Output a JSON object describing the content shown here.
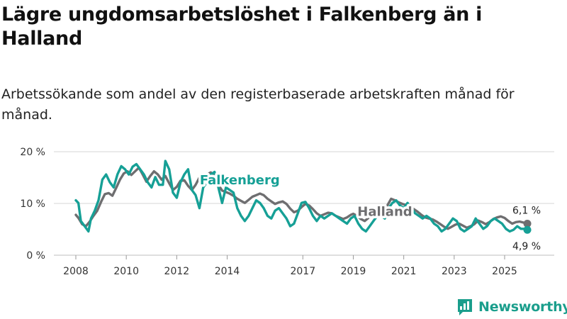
{
  "header": {
    "title": "Lägre ungdomsarbetslöshet i Falkenberg än i Halland",
    "subtitle": "Arbetssökande som andel av den registerbaserade arbetskraften månad för månad."
  },
  "brand": {
    "name": "Newsworthy",
    "icon": "newsworthy-logo-icon",
    "color": "#1a9e8c"
  },
  "colors": {
    "falkenberg": "#16a096",
    "halland": "#6e6e70",
    "grid": "#d6d6d6"
  },
  "chart_data": {
    "type": "line",
    "title": "Lägre ungdomsarbetslöshet i Falkenberg än i Halland",
    "subtitle": "Arbetssökande som andel av den registerbaserade arbetskraften månad för månad.",
    "xlabel": "",
    "ylabel": "",
    "xlim": [
      2007.5,
      2026.25
    ],
    "ylim": [
      0,
      20
    ],
    "grid": true,
    "y_ticks": [
      {
        "value": 0,
        "label": "0 %"
      },
      {
        "value": 10,
        "label": "10 %"
      },
      {
        "value": 20,
        "label": "20 %"
      }
    ],
    "x_ticks": [
      {
        "value": 2008,
        "label": "2008"
      },
      {
        "value": 2010,
        "label": "2010"
      },
      {
        "value": 2012,
        "label": "2012"
      },
      {
        "value": 2014,
        "label": "2014"
      },
      {
        "value": 2017,
        "label": "2017"
      },
      {
        "value": 2019,
        "label": "2019"
      },
      {
        "value": 2021,
        "label": "2021"
      },
      {
        "value": 2023,
        "label": "2023"
      },
      {
        "value": 2025,
        "label": "2025"
      }
    ],
    "series": [
      {
        "name": "Halland",
        "label": "Halland",
        "end_label": "6,1 %",
        "end_value": 6.1,
        "points": [
          [
            2008.0,
            7.8
          ],
          [
            2008.1,
            7.2
          ],
          [
            2008.25,
            6.0
          ],
          [
            2008.4,
            5.6
          ],
          [
            2008.55,
            6.5
          ],
          [
            2008.7,
            7.6
          ],
          [
            2008.85,
            8.6
          ],
          [
            2009.0,
            10.3
          ],
          [
            2009.15,
            11.8
          ],
          [
            2009.3,
            12.0
          ],
          [
            2009.45,
            11.5
          ],
          [
            2009.6,
            13.0
          ],
          [
            2009.75,
            14.6
          ],
          [
            2009.9,
            15.8
          ],
          [
            2010.05,
            16.2
          ],
          [
            2010.2,
            15.5
          ],
          [
            2010.35,
            16.2
          ],
          [
            2010.5,
            16.9
          ],
          [
            2010.65,
            15.6
          ],
          [
            2010.8,
            14.2
          ],
          [
            2010.95,
            15.3
          ],
          [
            2011.1,
            16.2
          ],
          [
            2011.25,
            15.6
          ],
          [
            2011.4,
            14.6
          ],
          [
            2011.55,
            15.3
          ],
          [
            2011.7,
            13.9
          ],
          [
            2011.85,
            12.6
          ],
          [
            2012.0,
            13.2
          ],
          [
            2012.15,
            14.4
          ],
          [
            2012.3,
            14.5
          ],
          [
            2012.45,
            13.4
          ],
          [
            2012.6,
            12.6
          ],
          [
            2012.75,
            13.6
          ],
          [
            2012.9,
            15.0
          ],
          [
            2013.05,
            15.3
          ],
          [
            2013.2,
            15.6
          ],
          [
            2013.35,
            16.0
          ],
          [
            2013.5,
            15.2
          ],
          [
            2013.65,
            13.6
          ],
          [
            2013.8,
            12.5
          ],
          [
            2013.95,
            12.2
          ],
          [
            2014.1,
            11.9
          ],
          [
            2014.25,
            11.5
          ],
          [
            2014.4,
            10.9
          ],
          [
            2014.55,
            10.5
          ],
          [
            2014.7,
            10.1
          ],
          [
            2014.85,
            10.7
          ],
          [
            2015.0,
            11.3
          ],
          [
            2015.15,
            11.6
          ],
          [
            2015.3,
            11.9
          ],
          [
            2015.45,
            11.6
          ],
          [
            2015.6,
            10.9
          ],
          [
            2015.75,
            10.4
          ],
          [
            2015.9,
            9.9
          ],
          [
            2016.05,
            10.2
          ],
          [
            2016.2,
            10.4
          ],
          [
            2016.35,
            9.9
          ],
          [
            2016.5,
            9.0
          ],
          [
            2016.65,
            8.3
          ],
          [
            2016.8,
            8.6
          ],
          [
            2016.95,
            9.3
          ],
          [
            2017.1,
            9.9
          ],
          [
            2017.25,
            9.6
          ],
          [
            2017.4,
            8.9
          ],
          [
            2017.55,
            8.1
          ],
          [
            2017.7,
            7.6
          ],
          [
            2017.85,
            7.9
          ],
          [
            2018.0,
            8.2
          ],
          [
            2018.15,
            8.1
          ],
          [
            2018.3,
            7.6
          ],
          [
            2018.45,
            7.3
          ],
          [
            2018.6,
            7.0
          ],
          [
            2018.75,
            7.3
          ],
          [
            2018.9,
            7.8
          ],
          [
            2019.0,
            8.0
          ],
          [
            2019.15,
            7.6
          ],
          [
            2019.3,
            7.0
          ],
          [
            2019.45,
            6.6
          ],
          [
            2019.6,
            7.2
          ],
          [
            2019.75,
            8.0
          ],
          [
            2019.9,
            8.4
          ],
          [
            2020.05,
            8.5
          ],
          [
            2020.2,
            8.8
          ],
          [
            2020.35,
            9.6
          ],
          [
            2020.5,
            10.9
          ],
          [
            2020.65,
            10.6
          ],
          [
            2020.8,
            10.2
          ],
          [
            2020.95,
            9.9
          ],
          [
            2021.1,
            9.7
          ],
          [
            2021.25,
            9.4
          ],
          [
            2021.4,
            8.9
          ],
          [
            2021.55,
            8.4
          ],
          [
            2021.7,
            7.8
          ],
          [
            2021.85,
            7.3
          ],
          [
            2022.0,
            7.1
          ],
          [
            2022.15,
            6.9
          ],
          [
            2022.3,
            6.5
          ],
          [
            2022.45,
            6.0
          ],
          [
            2022.6,
            5.5
          ],
          [
            2022.75,
            5.1
          ],
          [
            2022.9,
            5.5
          ],
          [
            2023.05,
            5.9
          ],
          [
            2023.2,
            6.1
          ],
          [
            2023.35,
            5.7
          ],
          [
            2023.5,
            5.3
          ],
          [
            2023.65,
            5.6
          ],
          [
            2023.8,
            6.0
          ],
          [
            2023.95,
            6.7
          ],
          [
            2024.1,
            6.4
          ],
          [
            2024.25,
            6.0
          ],
          [
            2024.4,
            6.4
          ],
          [
            2024.55,
            7.0
          ],
          [
            2024.7,
            7.3
          ],
          [
            2024.85,
            7.5
          ],
          [
            2025.0,
            7.2
          ],
          [
            2025.15,
            6.6
          ],
          [
            2025.3,
            6.1
          ],
          [
            2025.45,
            6.4
          ],
          [
            2025.6,
            6.5
          ],
          [
            2025.75,
            6.3
          ],
          [
            2025.9,
            6.1
          ]
        ]
      },
      {
        "name": "Falkenberg",
        "label": "Falkenberg",
        "end_label": "4,9 %",
        "end_value": 4.9,
        "points": [
          [
            2008.0,
            10.6
          ],
          [
            2008.1,
            10.1
          ],
          [
            2008.2,
            6.6
          ],
          [
            2008.35,
            5.6
          ],
          [
            2008.5,
            4.6
          ],
          [
            2008.6,
            7.1
          ],
          [
            2008.75,
            8.6
          ],
          [
            2008.9,
            10.6
          ],
          [
            2009.05,
            14.6
          ],
          [
            2009.2,
            15.6
          ],
          [
            2009.35,
            14.1
          ],
          [
            2009.5,
            13.1
          ],
          [
            2009.65,
            15.6
          ],
          [
            2009.8,
            17.2
          ],
          [
            2009.95,
            16.6
          ],
          [
            2010.1,
            15.6
          ],
          [
            2010.25,
            17.1
          ],
          [
            2010.4,
            17.6
          ],
          [
            2010.55,
            16.6
          ],
          [
            2010.7,
            15.6
          ],
          [
            2010.85,
            14.1
          ],
          [
            2011.0,
            13.1
          ],
          [
            2011.15,
            15.1
          ],
          [
            2011.3,
            13.6
          ],
          [
            2011.45,
            13.6
          ],
          [
            2011.55,
            18.2
          ],
          [
            2011.7,
            16.6
          ],
          [
            2011.85,
            12.1
          ],
          [
            2012.0,
            11.1
          ],
          [
            2012.15,
            14.1
          ],
          [
            2012.3,
            15.6
          ],
          [
            2012.45,
            16.6
          ],
          [
            2012.6,
            12.6
          ],
          [
            2012.75,
            11.6
          ],
          [
            2012.9,
            9.1
          ],
          [
            2013.05,
            13.1
          ],
          [
            2013.2,
            14.1
          ],
          [
            2013.35,
            15.6
          ],
          [
            2013.5,
            16.1
          ],
          [
            2013.65,
            13.1
          ],
          [
            2013.8,
            10.1
          ],
          [
            2013.95,
            13.1
          ],
          [
            2014.1,
            12.6
          ],
          [
            2014.25,
            12.1
          ],
          [
            2014.4,
            9.1
          ],
          [
            2014.55,
            7.6
          ],
          [
            2014.7,
            6.6
          ],
          [
            2014.85,
            7.6
          ],
          [
            2015.0,
            9.1
          ],
          [
            2015.15,
            10.6
          ],
          [
            2015.3,
            10.1
          ],
          [
            2015.45,
            9.1
          ],
          [
            2015.6,
            7.6
          ],
          [
            2015.75,
            7.1
          ],
          [
            2015.9,
            8.6
          ],
          [
            2016.05,
            9.1
          ],
          [
            2016.2,
            8.1
          ],
          [
            2016.35,
            7.1
          ],
          [
            2016.5,
            5.6
          ],
          [
            2016.65,
            6.1
          ],
          [
            2016.8,
            8.1
          ],
          [
            2016.95,
            10.1
          ],
          [
            2017.1,
            10.3
          ],
          [
            2017.25,
            9.1
          ],
          [
            2017.4,
            7.6
          ],
          [
            2017.55,
            6.6
          ],
          [
            2017.7,
            7.6
          ],
          [
            2017.85,
            7.1
          ],
          [
            2018.0,
            7.6
          ],
          [
            2018.15,
            8.1
          ],
          [
            2018.3,
            7.6
          ],
          [
            2018.45,
            7.1
          ],
          [
            2018.6,
            6.6
          ],
          [
            2018.75,
            6.1
          ],
          [
            2018.9,
            7.1
          ],
          [
            2019.05,
            7.6
          ],
          [
            2019.2,
            6.1
          ],
          [
            2019.35,
            5.1
          ],
          [
            2019.5,
            4.6
          ],
          [
            2019.65,
            5.6
          ],
          [
            2019.8,
            6.6
          ],
          [
            2019.95,
            7.6
          ],
          [
            2020.1,
            7.6
          ],
          [
            2020.25,
            7.1
          ],
          [
            2020.4,
            9.1
          ],
          [
            2020.55,
            10.1
          ],
          [
            2020.7,
            10.6
          ],
          [
            2020.85,
            9.6
          ],
          [
            2021.0,
            9.1
          ],
          [
            2021.15,
            10.1
          ],
          [
            2021.3,
            9.1
          ],
          [
            2021.45,
            8.1
          ],
          [
            2021.6,
            7.6
          ],
          [
            2021.75,
            7.1
          ],
          [
            2021.9,
            7.6
          ],
          [
            2022.05,
            7.1
          ],
          [
            2022.2,
            6.1
          ],
          [
            2022.35,
            5.6
          ],
          [
            2022.5,
            4.6
          ],
          [
            2022.65,
            5.1
          ],
          [
            2022.8,
            6.1
          ],
          [
            2022.95,
            7.1
          ],
          [
            2023.1,
            6.6
          ],
          [
            2023.25,
            5.1
          ],
          [
            2023.4,
            4.6
          ],
          [
            2023.55,
            5.1
          ],
          [
            2023.7,
            5.6
          ],
          [
            2023.85,
            7.1
          ],
          [
            2024.0,
            6.1
          ],
          [
            2024.15,
            5.1
          ],
          [
            2024.3,
            5.6
          ],
          [
            2024.45,
            6.6
          ],
          [
            2024.6,
            7.1
          ],
          [
            2024.75,
            6.6
          ],
          [
            2024.9,
            6.1
          ],
          [
            2025.05,
            5.1
          ],
          [
            2025.2,
            4.6
          ],
          [
            2025.35,
            4.9
          ],
          [
            2025.5,
            5.6
          ],
          [
            2025.65,
            5.1
          ],
          [
            2025.8,
            5.1
          ],
          [
            2025.9,
            4.9
          ]
        ]
      }
    ]
  }
}
